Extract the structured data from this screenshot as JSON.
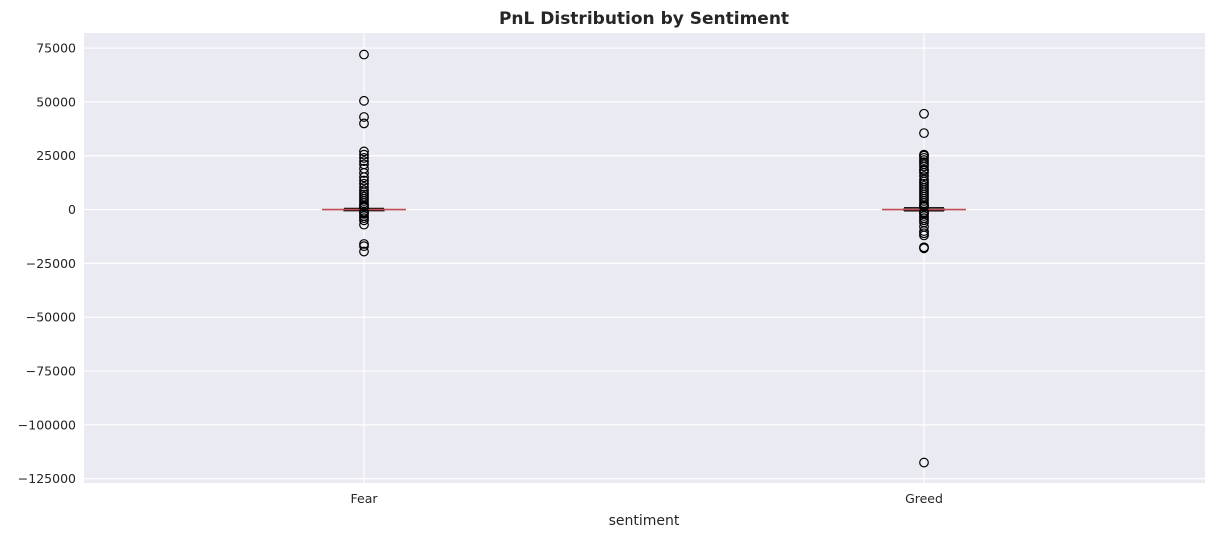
{
  "chart_data": {
    "type": "box",
    "title": "PnL Distribution by Sentiment",
    "xlabel": "sentiment",
    "ylabel": "",
    "ylim": [
      -127000,
      82000
    ],
    "yticks": [
      75000,
      50000,
      25000,
      0,
      -25000,
      -50000,
      -75000,
      -100000,
      -125000
    ],
    "ytick_labels": [
      "75000",
      "50000",
      "25000",
      "0",
      "−25000",
      "−50000",
      "−75000",
      "−100000",
      "−125000"
    ],
    "grid": true,
    "categories": [
      "Fear",
      "Greed"
    ],
    "boxes": [
      {
        "category": "Fear",
        "q1": -50,
        "median": 0,
        "q3": 150,
        "whisker_low": -400,
        "whisker_high": 600,
        "outliers": [
          72000,
          50500,
          43000,
          40000,
          27000,
          25500,
          24000,
          22500,
          21000,
          19000,
          17000,
          15000,
          13500,
          12000,
          10500,
          9000,
          8000,
          7000,
          6000,
          5000,
          4000,
          3000,
          2000,
          1500,
          1000,
          -1000,
          -1500,
          -2000,
          -3000,
          -4000,
          -5000,
          -7000,
          -16000,
          -17000,
          -19500
        ]
      },
      {
        "category": "Greed",
        "q1": -100,
        "median": 0,
        "q3": 300,
        "whisker_low": -700,
        "whisker_high": 900,
        "outliers": [
          44500,
          35500,
          25500,
          25000,
          24000,
          23000,
          22000,
          21000,
          20000,
          18500,
          18000,
          17000,
          15500,
          14000,
          13000,
          12000,
          11000,
          10000,
          9000,
          8000,
          7000,
          6000,
          5000,
          4000,
          3000,
          2000,
          1500,
          1200,
          -1200,
          -1500,
          -2000,
          -3000,
          -4000,
          -5000,
          -6000,
          -8000,
          -10000,
          -11000,
          -12000,
          -17500,
          -18000,
          -117500
        ]
      }
    ],
    "colors": {
      "background": "#eaeaf2",
      "grid": "#ffffff",
      "box": "#000000",
      "median": "#c44e52",
      "outlier_edge": "#000000"
    }
  }
}
